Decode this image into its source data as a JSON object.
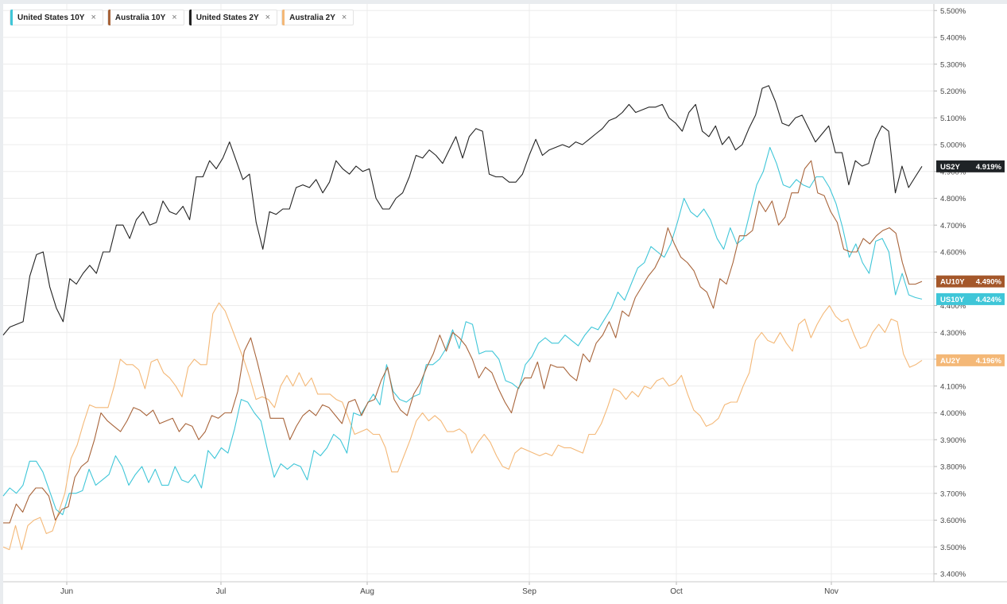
{
  "legend": [
    {
      "label": "United States 10Y",
      "color": "#3fc6d8",
      "remove": "×"
    },
    {
      "label": "Australia 10Y",
      "color": "#a8643a",
      "remove": "×"
    },
    {
      "label": "United States 2Y",
      "color": "#222222",
      "remove": "×"
    },
    {
      "label": "Australia 2Y",
      "color": "#f4b877",
      "remove": "×"
    }
  ],
  "chart_data": {
    "type": "line",
    "x_tick_labels": [
      "Jun",
      "Jul",
      "Aug",
      "Sep",
      "Oct",
      "Nov"
    ],
    "y_tick_labels": [
      "3.400%",
      "3.500%",
      "3.600%",
      "3.700%",
      "3.800%",
      "3.900%",
      "4.000%",
      "4.100%",
      "4.200%",
      "4.300%",
      "4.400%",
      "4.500%",
      "4.600%",
      "4.700%",
      "4.800%",
      "4.900%",
      "5.000%",
      "5.100%",
      "5.200%",
      "5.300%",
      "5.400%",
      "5.500%"
    ],
    "ylim": [
      3.4,
      5.5
    ],
    "axis_side": "right",
    "grid": true,
    "series": [
      {
        "name": "United States 10Y",
        "key": "us10",
        "color": "#3fc6d8",
        "values": [
          3.69,
          3.72,
          3.7,
          3.73,
          3.82,
          3.82,
          3.78,
          3.71,
          3.64,
          3.62,
          3.7,
          3.7,
          3.71,
          3.79,
          3.73,
          3.75,
          3.77,
          3.84,
          3.8,
          3.73,
          3.77,
          3.8,
          3.74,
          3.79,
          3.73,
          3.73,
          3.8,
          3.75,
          3.74,
          3.77,
          3.72,
          3.86,
          3.83,
          3.87,
          3.85,
          3.94,
          4.05,
          4.04,
          4.0,
          3.97,
          3.86,
          3.76,
          3.81,
          3.79,
          3.81,
          3.8,
          3.75,
          3.86,
          3.84,
          3.87,
          3.92,
          3.9,
          3.85,
          4.0,
          3.99,
          4.03,
          4.07,
          4.03,
          4.18,
          4.08,
          4.05,
          4.04,
          4.06,
          4.07,
          4.18,
          4.18,
          4.2,
          4.24,
          4.31,
          4.24,
          4.34,
          4.33,
          4.22,
          4.23,
          4.23,
          4.2,
          4.12,
          4.11,
          4.09,
          4.18,
          4.21,
          4.26,
          4.28,
          4.26,
          4.26,
          4.29,
          4.27,
          4.25,
          4.29,
          4.32,
          4.31,
          4.35,
          4.39,
          4.45,
          4.42,
          4.48,
          4.54,
          4.56,
          4.62,
          4.6,
          4.58,
          4.63,
          4.71,
          4.8,
          4.75,
          4.73,
          4.76,
          4.72,
          4.65,
          4.61,
          4.69,
          4.63,
          4.65,
          4.75,
          4.85,
          4.9,
          4.99,
          4.93,
          4.85,
          4.84,
          4.87,
          4.85,
          4.84,
          4.88,
          4.88,
          4.84,
          4.78,
          4.69,
          4.58,
          4.63,
          4.56,
          4.52,
          4.64,
          4.65,
          4.6,
          4.44,
          4.52,
          4.44,
          4.43,
          4.424
        ]
      },
      {
        "name": "Australia 10Y",
        "key": "au10",
        "color": "#a8643a",
        "values": [
          3.59,
          3.59,
          3.66,
          3.63,
          3.69,
          3.72,
          3.72,
          3.69,
          3.6,
          3.64,
          3.65,
          3.76,
          3.8,
          3.82,
          3.9,
          4.0,
          3.97,
          3.95,
          3.93,
          3.97,
          4.02,
          4.01,
          3.99,
          4.01,
          3.96,
          3.97,
          3.98,
          3.93,
          3.96,
          3.95,
          3.9,
          3.93,
          3.99,
          3.98,
          4.0,
          4.0,
          4.08,
          4.23,
          4.28,
          4.19,
          4.09,
          3.98,
          3.98,
          3.98,
          3.9,
          3.95,
          3.99,
          4.01,
          3.99,
          4.03,
          4.02,
          3.99,
          3.96,
          4.04,
          4.05,
          3.99,
          4.04,
          4.05,
          4.12,
          4.17,
          4.05,
          4.01,
          3.99,
          4.07,
          4.11,
          4.17,
          4.22,
          4.29,
          4.23,
          4.3,
          4.28,
          4.25,
          4.2,
          4.13,
          4.17,
          4.15,
          4.09,
          4.04,
          4.0,
          4.09,
          4.13,
          4.13,
          4.19,
          4.09,
          4.18,
          4.17,
          4.17,
          4.14,
          4.12,
          4.22,
          4.19,
          4.26,
          4.29,
          4.34,
          4.28,
          4.38,
          4.36,
          4.43,
          4.47,
          4.51,
          4.54,
          4.59,
          4.69,
          4.63,
          4.58,
          4.56,
          4.53,
          4.47,
          4.45,
          4.39,
          4.5,
          4.48,
          4.56,
          4.66,
          4.66,
          4.68,
          4.79,
          4.75,
          4.79,
          4.7,
          4.73,
          4.82,
          4.82,
          4.91,
          4.94,
          4.82,
          4.81,
          4.75,
          4.71,
          4.61,
          4.6,
          4.6,
          4.65,
          4.63,
          4.66,
          4.68,
          4.69,
          4.67,
          4.56,
          4.48,
          4.48,
          4.49
        ]
      },
      {
        "name": "United States 2Y",
        "key": "us2",
        "color": "#222222",
        "values": [
          4.29,
          4.32,
          4.33,
          4.34,
          4.51,
          4.59,
          4.6,
          4.47,
          4.39,
          4.34,
          4.5,
          4.48,
          4.52,
          4.55,
          4.52,
          4.6,
          4.6,
          4.7,
          4.7,
          4.65,
          4.72,
          4.75,
          4.7,
          4.71,
          4.79,
          4.75,
          4.74,
          4.77,
          4.72,
          4.88,
          4.88,
          4.94,
          4.91,
          4.95,
          5.01,
          4.94,
          4.87,
          4.89,
          4.71,
          4.61,
          4.75,
          4.74,
          4.76,
          4.76,
          4.84,
          4.85,
          4.84,
          4.87,
          4.82,
          4.86,
          4.94,
          4.91,
          4.89,
          4.92,
          4.9,
          4.91,
          4.8,
          4.76,
          4.76,
          4.8,
          4.82,
          4.88,
          4.96,
          4.95,
          4.98,
          4.96,
          4.93,
          4.98,
          5.03,
          4.95,
          5.03,
          5.06,
          5.05,
          4.89,
          4.88,
          4.88,
          4.86,
          4.86,
          4.89,
          4.96,
          5.02,
          4.96,
          4.98,
          4.99,
          5.0,
          4.99,
          5.01,
          5.0,
          5.02,
          5.04,
          5.06,
          5.09,
          5.1,
          5.12,
          5.15,
          5.12,
          5.13,
          5.14,
          5.14,
          5.15,
          5.1,
          5.08,
          5.05,
          5.12,
          5.15,
          5.05,
          5.03,
          5.07,
          5.0,
          5.03,
          4.98,
          5.0,
          5.06,
          5.11,
          5.21,
          5.22,
          5.16,
          5.08,
          5.07,
          5.1,
          5.11,
          5.06,
          5.01,
          5.04,
          5.07,
          4.97,
          4.97,
          4.85,
          4.94,
          4.92,
          4.93,
          5.02,
          5.07,
          5.05,
          4.82,
          4.92,
          4.84,
          4.88,
          4.919
        ]
      },
      {
        "name": "Australia 2Y",
        "key": "au2",
        "color": "#f4b877",
        "values": [
          3.5,
          3.49,
          3.58,
          3.49,
          3.58,
          3.6,
          3.61,
          3.55,
          3.56,
          3.63,
          3.7,
          3.83,
          3.88,
          3.96,
          4.03,
          4.02,
          4.02,
          4.02,
          4.1,
          4.2,
          4.18,
          4.18,
          4.16,
          4.09,
          4.19,
          4.2,
          4.15,
          4.13,
          4.1,
          4.06,
          4.17,
          4.2,
          4.18,
          4.18,
          4.37,
          4.41,
          4.38,
          4.32,
          4.26,
          4.2,
          4.13,
          4.05,
          4.06,
          4.05,
          4.02,
          4.1,
          4.14,
          4.1,
          4.15,
          4.1,
          4.13,
          4.07,
          4.07,
          4.07,
          4.05,
          4.04,
          3.98,
          3.92,
          3.93,
          3.94,
          3.92,
          3.92,
          3.87,
          3.78,
          3.78,
          3.84,
          3.9,
          3.97,
          4.0,
          3.97,
          3.99,
          3.97,
          3.93,
          3.93,
          3.94,
          3.92,
          3.85,
          3.89,
          3.92,
          3.89,
          3.84,
          3.8,
          3.79,
          3.85,
          3.87,
          3.86,
          3.85,
          3.84,
          3.85,
          3.84,
          3.88,
          3.87,
          3.87,
          3.86,
          3.85,
          3.92,
          3.92,
          3.96,
          4.02,
          4.09,
          4.08,
          4.05,
          4.08,
          4.06,
          4.1,
          4.09,
          4.12,
          4.13,
          4.1,
          4.11,
          4.14,
          4.07,
          4.01,
          3.99,
          3.95,
          3.96,
          3.98,
          4.03,
          4.04,
          4.04,
          4.1,
          4.15,
          4.27,
          4.3,
          4.27,
          4.26,
          4.3,
          4.26,
          4.23,
          4.33,
          4.35,
          4.28,
          4.33,
          4.37,
          4.4,
          4.36,
          4.34,
          4.35,
          4.29,
          4.24,
          4.25,
          4.3,
          4.33,
          4.3,
          4.35,
          4.34,
          4.22,
          4.17,
          4.18,
          4.196
        ]
      }
    ],
    "end_labels": [
      {
        "series": "us2",
        "tag": "US2Y",
        "value": "4.919%",
        "value_num": 4.919,
        "bg": "#1f2326"
      },
      {
        "series": "au10",
        "tag": "AU10Y",
        "value": "4.490%",
        "value_num": 4.49,
        "bg": "#a4572a"
      },
      {
        "series": "us10",
        "tag": "US10Y",
        "value": "4.424%",
        "value_num": 4.424,
        "bg": "#3fc6d8"
      },
      {
        "series": "au2",
        "tag": "AU2Y",
        "value": "4.196%",
        "value_num": 4.196,
        "bg": "#f4b877"
      }
    ]
  }
}
